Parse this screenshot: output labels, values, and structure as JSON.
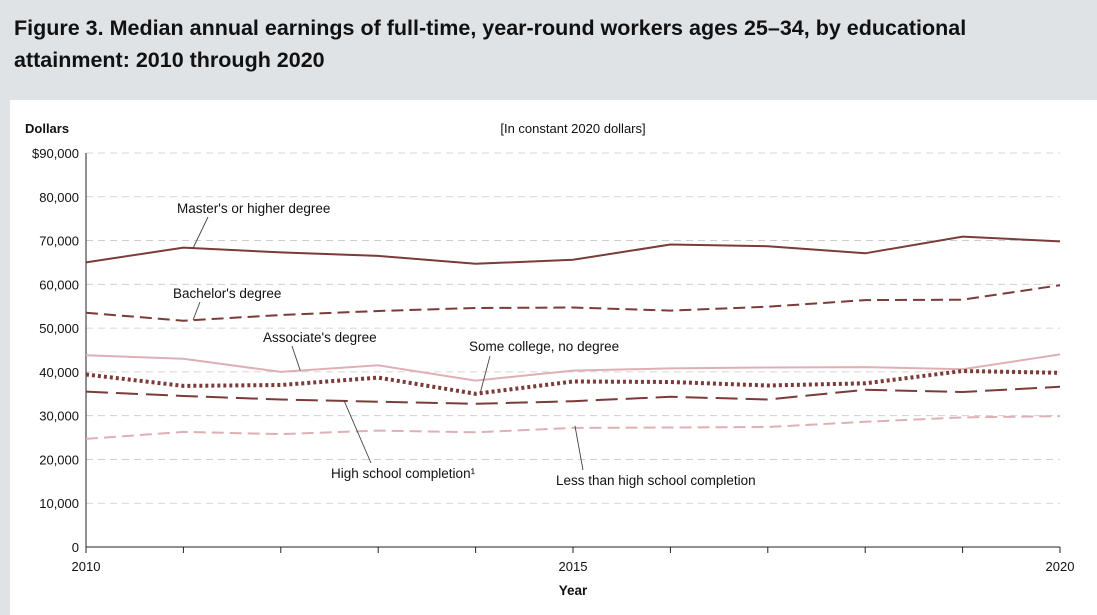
{
  "figure": {
    "title": "Figure 3. Median annual earnings of full-time, year-round workers ages 25–34, by educational attainment: 2010 through 2020"
  },
  "chart_data": {
    "type": "line",
    "title": "Figure 3. Median annual earnings of full-time, year-round workers ages 25–34, by educational attainment: 2010 through 2020",
    "subtitle": "[In constant 2020 dollars]",
    "ylabel": "Dollars",
    "xlabel": "Year",
    "ylim": [
      0,
      90000
    ],
    "yticks": [
      0,
      10000,
      20000,
      30000,
      40000,
      50000,
      60000,
      70000,
      80000,
      90000
    ],
    "ytick_labels": [
      "0",
      "10,000",
      "20,000",
      "30,000",
      "40,000",
      "50,000",
      "60,000",
      "70,000",
      "80,000",
      "$90,000"
    ],
    "xlim": [
      2010,
      2020
    ],
    "xtick_labels": [
      "2010",
      "2015",
      "2020"
    ],
    "x": [
      2010,
      2011,
      2012,
      2013,
      2014,
      2015,
      2016,
      2017,
      2018,
      2019,
      2020
    ],
    "grid": "horizontal dashed",
    "series": [
      {
        "name": "Master's or higher degree",
        "style": "solid",
        "color": "#7a3b39",
        "values": [
          65000,
          68400,
          67300,
          66500,
          64700,
          65600,
          69100,
          68700,
          67100,
          70900,
          69800
        ]
      },
      {
        "name": "Bachelor's degree",
        "style": "dash",
        "color": "#7a3b39",
        "values": [
          53500,
          51700,
          53000,
          53900,
          54600,
          54700,
          54000,
          54900,
          56400,
          56500,
          59800
        ]
      },
      {
        "name": "Associate's degree",
        "style": "solid",
        "color": "#deb0b3",
        "values": [
          43800,
          43000,
          40000,
          41500,
          38000,
          40300,
          40800,
          41000,
          41100,
          40600,
          44000
        ]
      },
      {
        "name": "Some college, no degree",
        "style": "dotted",
        "color": "#7a3b39",
        "values": [
          39400,
          36800,
          37000,
          38700,
          35000,
          37800,
          37700,
          36900,
          37400,
          40200,
          39800
        ]
      },
      {
        "name": "High school completion¹",
        "style": "longdash",
        "color": "#7a3b39",
        "values": [
          35500,
          34500,
          33700,
          33200,
          32700,
          33300,
          34300,
          33700,
          35900,
          35400,
          36600
        ]
      },
      {
        "name": "Less than high school completion",
        "style": "dash",
        "color": "#deb0b3",
        "values": [
          24700,
          26300,
          25800,
          26600,
          26200,
          27200,
          27300,
          27400,
          28600,
          29600,
          29900
        ]
      }
    ],
    "annotations": [
      "Master's or higher degree",
      "Bachelor's degree",
      "Associate's degree",
      "Some college, no degree",
      "High school completion¹",
      "Less than high school completion"
    ]
  }
}
